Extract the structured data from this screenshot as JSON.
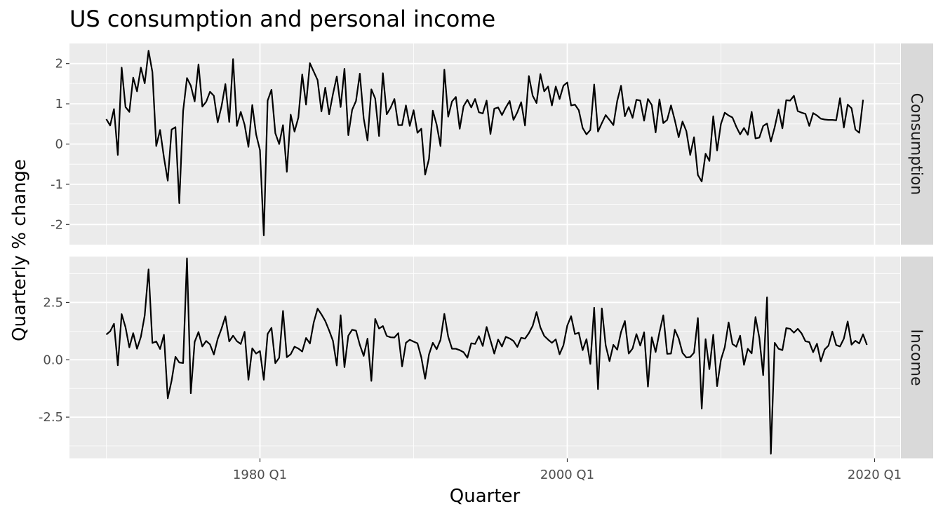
{
  "chart_data": {
    "type": "line",
    "title": "US consumption and personal income",
    "xlabel": "Quarter",
    "ylabel": "Quarterly % change",
    "x_ticks": [
      "1980 Q1",
      "2000 Q1",
      "2020 Q1"
    ],
    "x_start": "1970 Q1",
    "grid": true,
    "facets": [
      {
        "name": "Consumption",
        "ylim": [
          -2.5,
          2.5
        ],
        "y_ticks": [
          -2,
          -1,
          0,
          1,
          2
        ],
        "y_tick_labels": [
          "-2",
          "-1",
          "0",
          "1",
          "2"
        ],
        "values": [
          0.62,
          0.46,
          0.87,
          -0.27,
          1.9,
          0.92,
          0.8,
          1.65,
          1.31,
          1.9,
          1.51,
          2.32,
          1.79,
          -0.05,
          0.35,
          -0.33,
          -0.91,
          0.36,
          0.42,
          -1.47,
          0.82,
          1.64,
          1.45,
          1.06,
          1.98,
          0.93,
          1.05,
          1.3,
          1.2,
          0.54,
          0.94,
          1.49,
          0.55,
          2.11,
          0.45,
          0.8,
          0.48,
          -0.07,
          0.97,
          0.24,
          -0.15,
          -2.27,
          1.08,
          1.35,
          0.27,
          0.0,
          0.47,
          -0.69,
          0.73,
          0.31,
          0.66,
          1.73,
          0.98,
          2.01,
          1.8,
          1.59,
          0.81,
          1.4,
          0.74,
          1.24,
          1.68,
          0.92,
          1.87,
          0.22,
          0.85,
          1.07,
          1.75,
          0.64,
          0.09,
          1.36,
          1.13,
          0.2,
          1.76,
          0.74,
          0.9,
          1.12,
          0.47,
          0.47,
          0.96,
          0.45,
          0.84,
          0.28,
          0.38,
          -0.76,
          -0.37,
          0.83,
          0.48,
          -0.05,
          1.85,
          0.68,
          1.06,
          1.17,
          0.38,
          0.94,
          1.1,
          0.91,
          1.12,
          0.79,
          0.76,
          1.08,
          0.25,
          0.88,
          0.91,
          0.72,
          0.91,
          1.07,
          0.6,
          0.79,
          1.04,
          0.46,
          1.69,
          1.2,
          1.02,
          1.74,
          1.31,
          1.43,
          0.96,
          1.43,
          1.12,
          1.45,
          1.53,
          0.96,
          0.98,
          0.84,
          0.4,
          0.24,
          0.35,
          1.48,
          0.31,
          0.52,
          0.72,
          0.6,
          0.47,
          1.07,
          1.45,
          0.69,
          0.92,
          0.65,
          1.1,
          1.08,
          0.58,
          1.12,
          0.97,
          0.29,
          1.11,
          0.52,
          0.6,
          0.96,
          0.59,
          0.17,
          0.56,
          0.32,
          -0.27,
          0.17,
          -0.77,
          -0.93,
          -0.24,
          -0.42,
          0.69,
          -0.16,
          0.5,
          0.78,
          0.71,
          0.66,
          0.43,
          0.24,
          0.4,
          0.23,
          0.8,
          0.14,
          0.16,
          0.45,
          0.51,
          0.06,
          0.42,
          0.86,
          0.39,
          1.09,
          1.08,
          1.2,
          0.82,
          0.78,
          0.75,
          0.45,
          0.77,
          0.71,
          0.63,
          0.61,
          0.6,
          0.6,
          0.59,
          1.14,
          0.41,
          0.98,
          0.89,
          0.36,
          0.28,
          1.1
        ]
      },
      {
        "name": "Income",
        "ylim": [
          -4.3,
          4.5
        ],
        "y_ticks": [
          -2.5,
          0.0,
          2.5
        ],
        "y_tick_labels": [
          "-2.5",
          "0.0",
          "2.5"
        ],
        "values": [
          1.1,
          1.24,
          1.57,
          -0.24,
          1.99,
          1.42,
          0.54,
          1.16,
          0.48,
          1.0,
          1.93,
          3.94,
          0.73,
          0.8,
          0.47,
          1.09,
          -1.68,
          -0.91,
          0.13,
          -0.12,
          -0.14,
          4.42,
          -1.46,
          0.78,
          1.21,
          0.58,
          0.82,
          0.67,
          0.23,
          0.91,
          1.36,
          1.89,
          0.8,
          1.05,
          0.81,
          0.69,
          1.22,
          -0.87,
          0.5,
          0.27,
          0.38,
          -0.87,
          1.13,
          1.39,
          -0.15,
          0.09,
          2.13,
          0.11,
          0.24,
          0.57,
          0.49,
          0.36,
          0.95,
          0.71,
          1.63,
          2.23,
          1.98,
          1.69,
          1.28,
          0.83,
          -0.25,
          1.94,
          -0.32,
          1.05,
          1.31,
          1.27,
          0.65,
          0.17,
          0.92,
          -0.92,
          1.78,
          1.36,
          1.47,
          1.04,
          0.98,
          0.97,
          1.16,
          -0.29,
          0.74,
          0.87,
          0.79,
          0.72,
          0.11,
          -0.83,
          0.23,
          0.74,
          0.46,
          0.87,
          2.0,
          1.01,
          0.48,
          0.48,
          0.42,
          0.33,
          0.09,
          0.72,
          0.69,
          1.03,
          0.6,
          1.43,
          0.85,
          0.27,
          0.88,
          0.58,
          1.0,
          0.93,
          0.82,
          0.56,
          0.96,
          0.92,
          1.16,
          1.48,
          2.08,
          1.41,
          1.04,
          0.88,
          0.74,
          0.89,
          0.24,
          0.63,
          1.49,
          1.9,
          1.12,
          1.18,
          0.42,
          0.9,
          -0.18,
          2.27,
          -1.28,
          2.24,
          0.63,
          -0.06,
          0.65,
          0.44,
          1.21,
          1.69,
          0.27,
          0.49,
          1.12,
          0.62,
          1.2,
          -1.17,
          0.98,
          0.34,
          1.2,
          1.94,
          0.26,
          0.27,
          1.31,
          0.93,
          0.3,
          0.1,
          0.12,
          0.31,
          1.82,
          -2.13,
          0.9,
          -0.41,
          1.09,
          -1.15,
          0.0,
          0.55,
          1.63,
          0.69,
          0.57,
          1.05,
          -0.22,
          0.48,
          0.28,
          1.86,
          0.95,
          -0.67,
          2.72,
          -4.1,
          0.74,
          0.48,
          0.42,
          1.38,
          1.35,
          1.18,
          1.35,
          1.15,
          0.81,
          0.77,
          0.33,
          0.7,
          -0.07,
          0.45,
          0.62,
          1.23,
          0.64,
          0.58,
          0.92,
          1.67,
          0.66,
          0.83,
          0.71,
          1.11,
          0.65
        ]
      }
    ]
  },
  "colors": {
    "panel_bg": "#ebebeb",
    "grid_major": "#ffffff",
    "strip_bg": "#d9d9d9",
    "line": "#000000",
    "tick_mark": "#333333"
  }
}
